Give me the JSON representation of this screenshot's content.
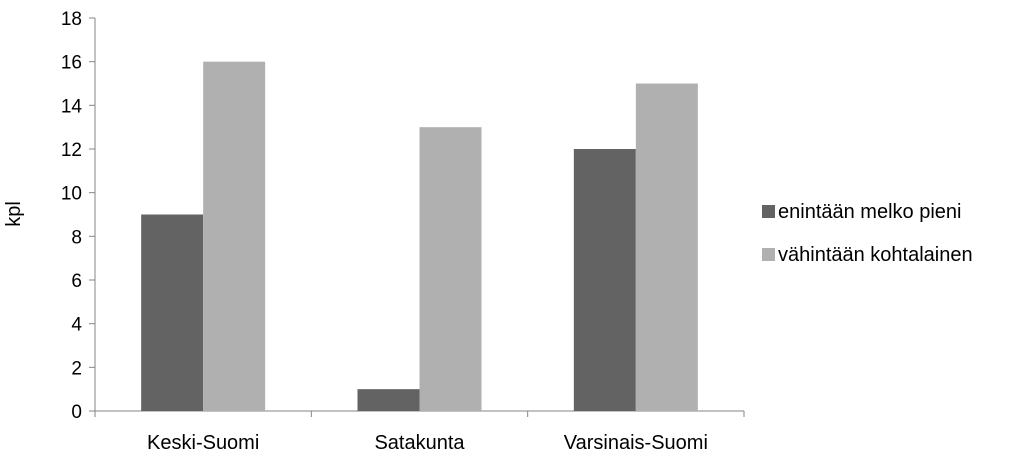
{
  "chart_data": {
    "type": "bar",
    "title": "",
    "xlabel": "",
    "ylabel": "kpl",
    "categories": [
      "Keski-Suomi",
      "Satakunta",
      "Varsinais-Suomi"
    ],
    "series": [
      {
        "name": "enintään melko pieni",
        "values": [
          9,
          1,
          12
        ],
        "color": "#636363"
      },
      {
        "name": "vähintään kohtalainen",
        "values": [
          16,
          13,
          15
        ],
        "color": "#b0b0b0"
      }
    ],
    "ylim": [
      0,
      18
    ],
    "yticks": [
      0,
      2,
      4,
      6,
      8,
      10,
      12,
      14,
      16,
      18
    ],
    "grid": false,
    "legend_position": "right"
  }
}
